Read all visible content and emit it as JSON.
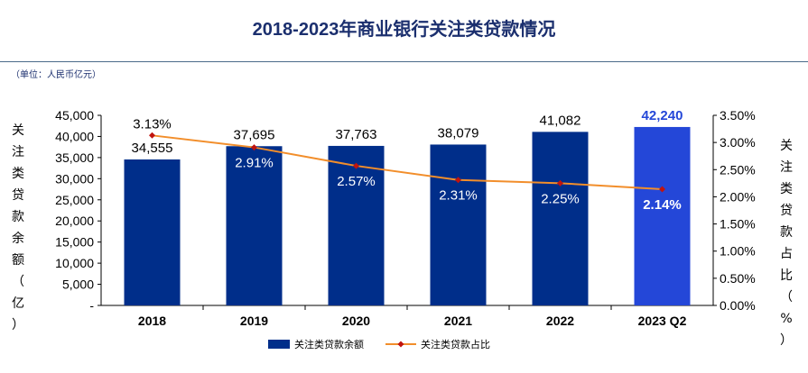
{
  "title": "2018-2023年商业银行关注类贷款情况",
  "unit_note": "（单位：人民币亿元）",
  "chart_data": {
    "type": "bar",
    "title": "2018-2023年商业银行关注类贷款情况",
    "categories": [
      "2018",
      "2019",
      "2020",
      "2021",
      "2022",
      "2023 Q2"
    ],
    "series": [
      {
        "name": "关注类贷款余额",
        "kind": "bar",
        "axis": "left",
        "values": [
          34555,
          37695,
          37763,
          38079,
          41082,
          42240
        ],
        "labels": [
          "34,555",
          "37,695",
          "37,763",
          "38,079",
          "41,082",
          "42,240"
        ],
        "color": "#002e8a",
        "highlight_color": "#2447d8"
      },
      {
        "name": "关注类贷款占比",
        "kind": "line",
        "axis": "right",
        "values": [
          3.13,
          2.91,
          2.57,
          2.31,
          2.25,
          2.14
        ],
        "labels": [
          "3.13%",
          "2.91%",
          "2.57%",
          "2.31%",
          "2.25%",
          "2.14%"
        ],
        "color": "#f28e2b",
        "marker_color": "#c0140f"
      }
    ],
    "y_left": {
      "label": [
        "关",
        "注",
        "类",
        "贷",
        "款",
        "余",
        "额",
        "（",
        "亿",
        "）"
      ],
      "range": [
        0,
        45000
      ],
      "ticks": [
        "-",
        "5,000",
        "10,000",
        "15,000",
        "20,000",
        "25,000",
        "30,000",
        "35,000",
        "40,000",
        "45,000"
      ]
    },
    "y_right": {
      "label": [
        "关",
        "注",
        "类",
        "贷",
        "款",
        "占",
        "比",
        "（",
        "%",
        "）"
      ],
      "range": [
        0,
        3.5
      ],
      "ticks": [
        "0.00%",
        "0.50%",
        "1.00%",
        "1.50%",
        "2.00%",
        "2.50%",
        "3.00%",
        "3.50%"
      ]
    },
    "grid": false,
    "legend_position": "bottom-center"
  }
}
